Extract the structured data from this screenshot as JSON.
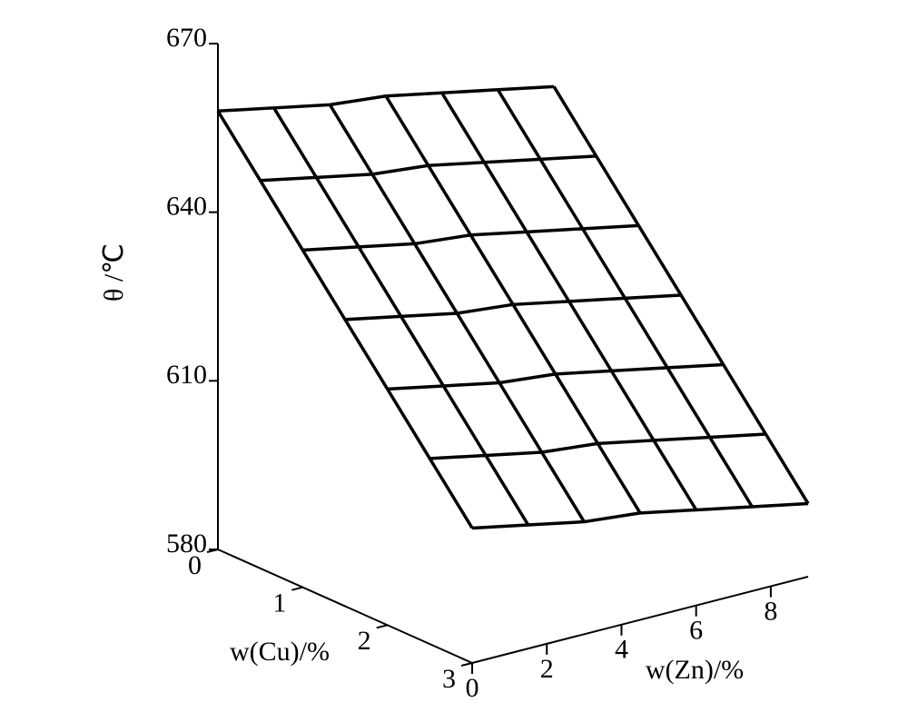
{
  "chart_data": {
    "type": "surface",
    "zlabel": "θ /℃",
    "xlabel": "w(Cu)/%",
    "ylabel": "w(Zn)/%",
    "x": [
      0,
      0.5,
      1,
      1.5,
      2,
      2.5,
      3
    ],
    "y": [
      0,
      1.5,
      3,
      4.5,
      6,
      7.5,
      9
    ],
    "z": [
      [
        658,
        656,
        654,
        653,
        651,
        649,
        647
      ],
      [
        649,
        647,
        645,
        644,
        642,
        640,
        638
      ],
      [
        640,
        638,
        636,
        635,
        633,
        631,
        629
      ],
      [
        631,
        629,
        627,
        626,
        624,
        622,
        620
      ],
      [
        622,
        620,
        618,
        617,
        615,
        613,
        611
      ],
      [
        613,
        611,
        609,
        608,
        606,
        604,
        602
      ],
      [
        604,
        602,
        600,
        599,
        597,
        595,
        593
      ]
    ],
    "xlim": [
      0,
      3
    ],
    "ylim": [
      0,
      9
    ],
    "zlim": [
      580,
      670
    ],
    "xticks": [
      0,
      1,
      2,
      3
    ],
    "yticks": [
      0,
      2,
      4,
      6,
      8
    ],
    "zticks": [
      580,
      610,
      640,
      670
    ],
    "color": "#000000"
  }
}
